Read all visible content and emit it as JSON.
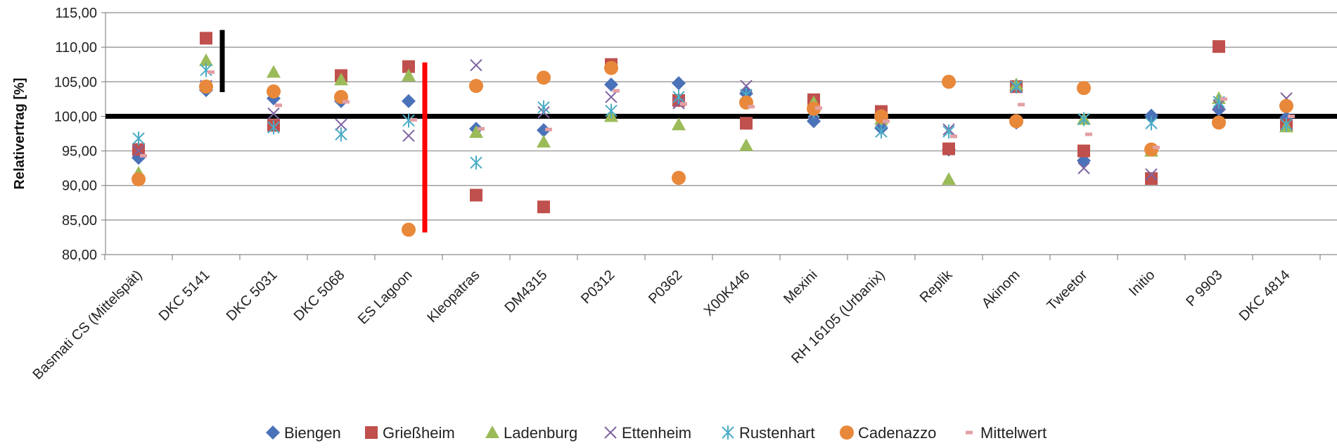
{
  "chart_data": {
    "type": "scatter",
    "title": "",
    "xlabel": "",
    "ylabel": "Relativertrag [%]",
    "ylim": [
      80,
      115
    ],
    "ytick_step": 5,
    "ytick_labels": [
      "80,00",
      "85,00",
      "90,00",
      "95,00",
      "100,00",
      "105,00",
      "110,00",
      "115,00"
    ],
    "grid": true,
    "legend_position": "bottom",
    "reference_line": 100,
    "categories": [
      "Basmati CS (Mittelspät)",
      "DKC 5141",
      "DKC 5031",
      "DKC 5068",
      "ES Lagoon",
      "Kleopatras",
      "DM4315",
      "P0312",
      "P0362",
      "X00K446",
      "Mexini",
      "RH 16105 (Urbanix)",
      "Replik",
      "Akinom",
      "Tweetor",
      "Initio",
      "P 9903",
      "DKC 4814"
    ],
    "series": [
      {
        "name": "Biengen",
        "marker": "diamond",
        "color": "#4A72B8",
        "values": [
          94.0,
          103.8,
          102.6,
          102.2,
          102.2,
          98.2,
          98.0,
          104.6,
          104.8,
          103.3,
          99.3,
          98.3,
          95.2,
          99.1,
          93.6,
          100.1,
          101.0,
          99.8
        ]
      },
      {
        "name": "Grießheim",
        "marker": "square",
        "color": "#C0504D",
        "values": [
          95.2,
          111.3,
          98.7,
          105.9,
          107.2,
          88.6,
          86.9,
          107.5,
          102.3,
          99.0,
          102.4,
          100.7,
          95.3,
          104.3,
          95.0,
          91.0,
          110.1,
          98.7
        ]
      },
      {
        "name": "Ladenburg",
        "marker": "triangle",
        "color": "#9BBB59",
        "values": [
          91.8,
          108.1,
          106.4,
          105.3,
          105.9,
          97.7,
          96.3,
          100.0,
          98.8,
          95.8,
          102.0,
          99.6,
          90.9,
          104.6,
          99.6,
          95.0,
          102.6,
          98.5
        ]
      },
      {
        "name": "Ettenheim",
        "marker": "x",
        "color": "#7F64A2",
        "values": [
          95.0,
          104.4,
          100.4,
          98.8,
          97.2,
          107.4,
          100.6,
          102.8,
          101.9,
          104.4,
          100.5,
          99.3,
          98.1,
          104.2,
          92.5,
          91.6,
          101.6,
          102.6
        ]
      },
      {
        "name": "Rustenhart",
        "marker": "asterisk",
        "color": "#4BACC6",
        "values": [
          96.8,
          106.7,
          98.4,
          97.4,
          99.4,
          93.3,
          101.3,
          100.8,
          102.8,
          103.1,
          100.7,
          97.8,
          97.8,
          104.3,
          99.6,
          99.0,
          102.1,
          98.8
        ]
      },
      {
        "name": "Cadenazzo",
        "marker": "circle",
        "color": "#E8883A",
        "values": [
          90.9,
          104.3,
          103.6,
          102.8,
          83.6,
          104.4,
          105.6,
          107.0,
          91.1,
          102.0,
          101.1,
          100.0,
          105.0,
          99.3,
          104.1,
          95.2,
          99.1,
          101.5
        ]
      },
      {
        "name": "Mittelwert",
        "marker": "dash",
        "color": "#E3A0A5",
        "values": [
          94.3,
          106.4,
          101.6,
          102.1,
          99.5,
          98.2,
          98.1,
          103.7,
          101.8,
          101.4,
          101.2,
          99.3,
          97.1,
          101.7,
          97.4,
          95.5,
          102.5,
          100.0
        ]
      }
    ],
    "error_bars": [
      {
        "category": "DKC 5141",
        "low": 103.5,
        "high": 112.5,
        "color": "#000000"
      },
      {
        "category": "ES Lagoon",
        "low": 83.2,
        "high": 107.8,
        "color": "#FF0000"
      }
    ]
  }
}
